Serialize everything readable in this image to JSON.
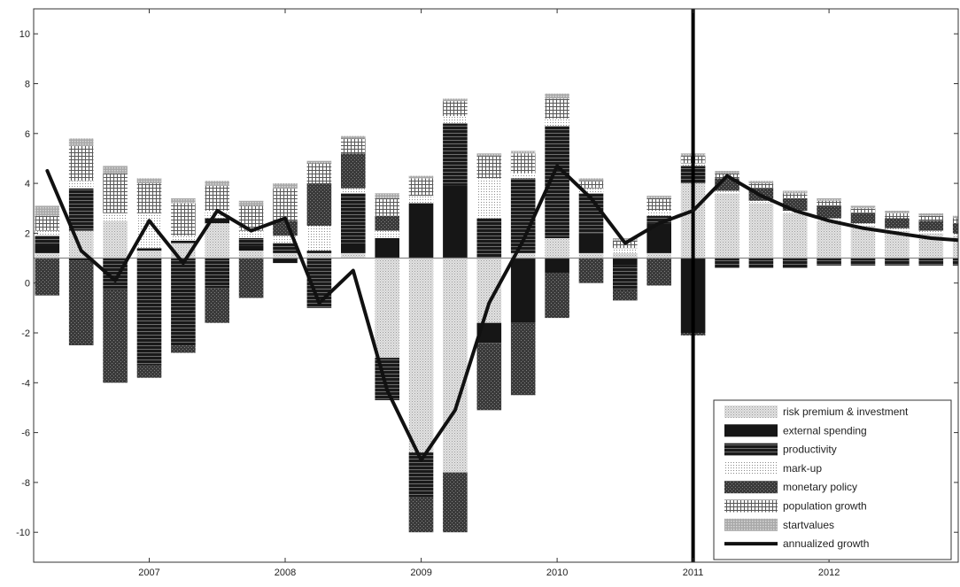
{
  "chart_data": {
    "type": "bar",
    "stacked": true,
    "baseline": 1,
    "xlim": [
      2006.15,
      2012.95
    ],
    "ylim": [
      -11.2,
      11
    ],
    "x_ticks": [
      2007,
      2008,
      2009,
      2010,
      2011,
      2012
    ],
    "y_ticks": [
      -10,
      -8,
      -6,
      -4,
      -2,
      0,
      2,
      4,
      6,
      8,
      10
    ],
    "grid": false,
    "legend_position": "bottom-right",
    "forecast_start": 2011,
    "x": [
      2006.25,
      2006.5,
      2006.75,
      2007.0,
      2007.25,
      2007.5,
      2007.75,
      2008.0,
      2008.25,
      2008.5,
      2008.75,
      2009.0,
      2009.25,
      2009.5,
      2009.75,
      2010.0,
      2010.25,
      2010.5,
      2010.75,
      2011.0,
      2011.25,
      2011.5,
      2011.75,
      2012.0,
      2012.25,
      2012.5,
      2012.75,
      2013.0
    ],
    "series": [
      {
        "name": "risk premium & investment",
        "color": "#d4d4d4",
        "values": [
          0.2,
          1.1,
          1.5,
          0.3,
          0.6,
          1.4,
          0.3,
          0.2,
          0.2,
          0.2,
          -4,
          -7.8,
          -8.6,
          -2.6,
          0.2,
          0.8,
          0.2,
          0.2,
          0.2,
          3.0,
          2.6,
          2.2,
          1.8,
          1.5,
          1.3,
          1.1,
          1.0,
          0.9
        ]
      },
      {
        "name": "external spending",
        "color": "#1c1c1c",
        "values": [
          0.3,
          -0.1,
          -0.1,
          0.1,
          0.1,
          0.2,
          0.2,
          -0.2,
          0.1,
          0.4,
          0.8,
          2.2,
          2.9,
          -0.8,
          -2.6,
          -0.6,
          0.8,
          -0.3,
          1.2,
          -3.0,
          -0.1,
          -0.1,
          -0.1,
          -0.1,
          -0.1,
          -0.1,
          -0.1,
          -0.1
        ]
      },
      {
        "name": "productivity",
        "color": "#4a4a4a",
        "values": [
          0.4,
          1.7,
          -1.2,
          -4.3,
          -3.5,
          -1.2,
          0.3,
          0.4,
          -2.0,
          2.0,
          -1.7,
          -1.8,
          2.5,
          1.6,
          3.0,
          4.5,
          1.6,
          -1.0,
          0.3,
          0.7,
          -0.3,
          -0.3,
          -0.3,
          -0.2,
          -0.2,
          -0.2,
          -0.2,
          -0.2
        ]
      },
      {
        "name": "mark-up",
        "color": "#f0f0f0",
        "values": [
          0.2,
          0.3,
          0.3,
          1.4,
          0.2,
          0.3,
          0.3,
          0.3,
          1.0,
          0.2,
          0.3,
          0.3,
          0.3,
          1.6,
          0.2,
          0.3,
          0.2,
          0.2,
          0.2,
          0.1,
          0.1,
          0.1,
          0.1,
          0.1,
          0.1,
          0.1,
          0.1,
          0.1
        ]
      },
      {
        "name": "monetary policy",
        "color": "#5e5e5e",
        "values": [
          -1.5,
          -3.4,
          -3.7,
          -0.5,
          -0.3,
          -1.4,
          -1.6,
          0.6,
          1.7,
          1.4,
          0.6,
          -1.4,
          -2.4,
          -2.7,
          -2.9,
          -1.8,
          -1.0,
          -0.4,
          -1.1,
          -0.1,
          0.5,
          0.5,
          0.5,
          0.5,
          0.4,
          0.4,
          0.4,
          0.4
        ]
      },
      {
        "name": "population growth",
        "color": "#9a9a9a",
        "values": [
          0.6,
          1.4,
          1.6,
          1.2,
          1.3,
          1.0,
          1.0,
          1.3,
          0.8,
          0.6,
          0.7,
          0.7,
          0.6,
          0.9,
          0.8,
          0.8,
          0.3,
          0.3,
          0.5,
          0.3,
          0.2,
          0.2,
          0.2,
          0.2,
          0.2,
          0.2,
          0.2,
          0.2
        ]
      },
      {
        "name": "startvalues",
        "color": "#bdbdbd",
        "values": [
          0.4,
          0.3,
          0.3,
          0.2,
          0.2,
          0.2,
          0.2,
          0.2,
          0.1,
          0.1,
          0.2,
          0.1,
          0.1,
          0.1,
          0.1,
          0.2,
          0.1,
          0.1,
          0.1,
          0.1,
          0.1,
          0.1,
          0.1,
          0.1,
          0.1,
          0.1,
          0.1,
          0.1
        ]
      }
    ],
    "line": {
      "name": "annualized growth",
      "color": "#111111",
      "values": [
        4.5,
        1.3,
        0.1,
        2.5,
        0.8,
        2.9,
        2.1,
        2.6,
        -0.8,
        0.5,
        -4.3,
        -7.1,
        -5.1,
        -0.8,
        1.7,
        4.7,
        3.4,
        1.6,
        2.4,
        2.9,
        4.3,
        3.5,
        2.9,
        2.5,
        2.2,
        2.0,
        1.8,
        1.7
      ]
    }
  }
}
